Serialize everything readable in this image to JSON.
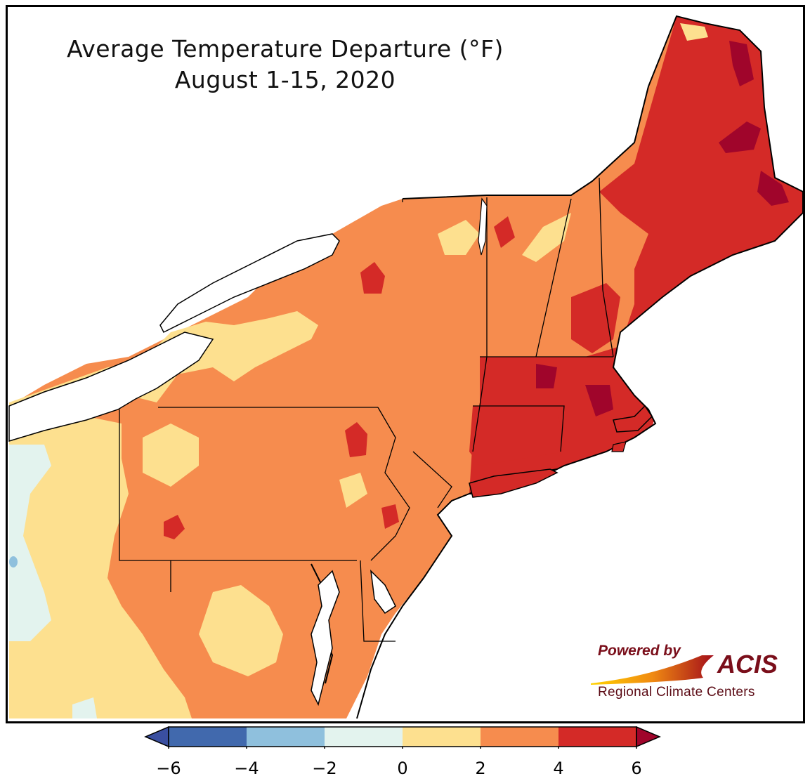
{
  "map": {
    "title_line1": "Average Temperature Departure (°F)",
    "title_line2": "August 1-15, 2020",
    "units": "°F",
    "region": "Northeast United States",
    "period": "August 1-15, 2020"
  },
  "credit": {
    "powered_by": "Powered by",
    "logo": "ACIS",
    "org": "Regional Climate Centers"
  },
  "legend": {
    "ticks": [
      "−6",
      "−4",
      "−2",
      "0",
      "2",
      "4",
      "6"
    ],
    "bins": [
      {
        "range": "-6 to -4",
        "color": "#4169ad"
      },
      {
        "range": "-4 to -2",
        "color": "#8fc0dd"
      },
      {
        "range": "-2 to 0",
        "color": "#e3f3ee"
      },
      {
        "range": "0 to 2",
        "color": "#fde08f"
      },
      {
        "range": "2 to 4",
        "color": "#f68c4e"
      },
      {
        "range": "4 to 6",
        "color": "#d42a27"
      }
    ],
    "under_color": "#3a4fa0",
    "over_color": "#a0052b"
  },
  "colors": {
    "extreme": "#a0052b",
    "water": "#ffffff",
    "border": "#000000"
  }
}
